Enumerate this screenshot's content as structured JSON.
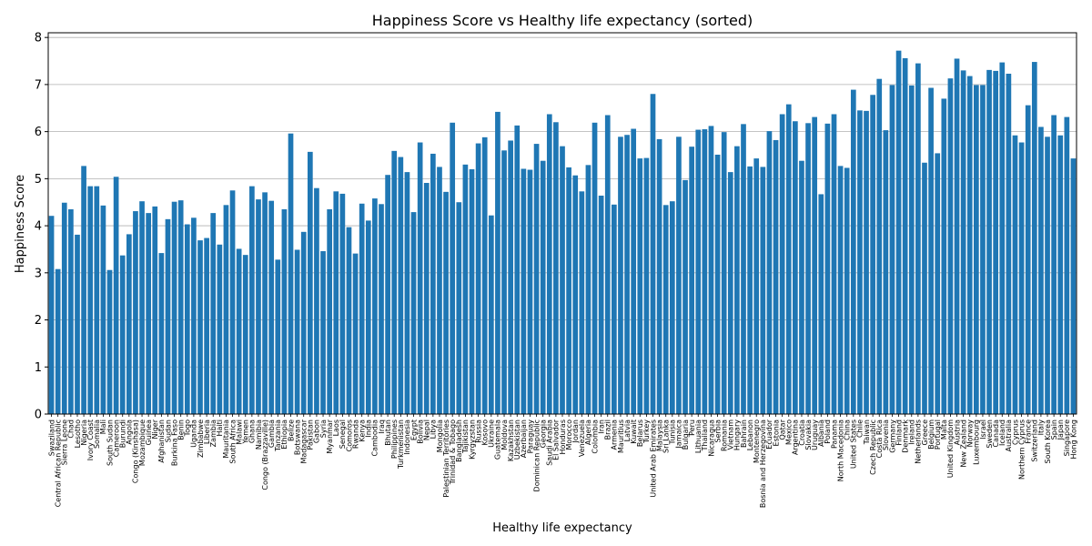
{
  "chart_data": {
    "type": "bar",
    "title": "Happiness Score vs Healthy life expectancy (sorted)",
    "xlabel": "Healthy life expectancy",
    "ylabel": "Happiness Score",
    "ylim": [
      0,
      8.1
    ],
    "yticks": [
      0,
      1,
      2,
      3,
      4,
      5,
      6,
      7,
      8
    ],
    "grid": "y",
    "bar_color": "#1f77b4",
    "categories": [
      "Swaziland",
      "Central African Republic",
      "Sierra Leone",
      "Chad",
      "Lesotho",
      "Nigeria",
      "Ivory Coast",
      "Somalia",
      "Mali",
      "South Sudan",
      "Cameroon",
      "Burundi",
      "Angola",
      "Congo (Kinshasa)",
      "Mozambique",
      "Guinea",
      "Niger",
      "Afghanistan",
      "Sudan",
      "Burkina Faso",
      "Benin",
      "Togo",
      "Uganda",
      "Zimbabwe",
      "Liberia",
      "Zambia",
      "Haiti",
      "Mauritania",
      "South Africa",
      "Malawi",
      "Yemen",
      "Ghana",
      "Namibia",
      "Congo (Brazzaville)",
      "Gambia",
      "Tanzania",
      "Ethiopia",
      "Belize",
      "Botswana",
      "Madagascar",
      "Pakistan",
      "Gabon",
      "Syria",
      "Myanmar",
      "Laos",
      "Senegal",
      "Comoros",
      "Rwanda",
      "Kenya",
      "India",
      "Cambodia",
      "Iraq",
      "Bhutan",
      "Philippines",
      "Turkmenistan",
      "Indonesia",
      "Egypt",
      "Bolivia",
      "Nepal",
      "Libya",
      "Mongolia",
      "Palestinian Territories",
      "Trinidad & Tobago",
      "Bangladesh",
      "Tajikistan",
      "Kyrgyzstan",
      "Russia",
      "Kosovo",
      "Ukraine",
      "Guatemala",
      "Moldova",
      "Kazakhstan",
      "Uzbekistan",
      "Azerbaijan",
      "Paraguay",
      "Dominican Republic",
      "Georgia",
      "Saudi Arabia",
      "El Salvador",
      "Honduras",
      "Morocco",
      "Jordan",
      "Venezuela",
      "Algeria",
      "Colombia",
      "Iran",
      "Brazil",
      "Armenia",
      "Mauritius",
      "Latvia",
      "Kuwait",
      "Belarus",
      "Turkey",
      "United Arab Emirates",
      "Malaysia",
      "Sri Lanka",
      "Tunisia",
      "Jamaica",
      "Bulgaria",
      "Peru",
      "Lithuania",
      "Thailand",
      "Nicaragua",
      "Serbia",
      "Romania",
      "Vietnam",
      "Hungary",
      "Bahrain",
      "Lebanon",
      "Montenegro",
      "Bosnia and Herzegovina",
      "Ecuador",
      "Estonia",
      "Qatar",
      "Mexico",
      "Argentina",
      "Croatia",
      "Slovakia",
      "Uruguay",
      "Albania",
      "Poland",
      "Panama",
      "North Macedonia",
      "China",
      "United States",
      "Chile",
      "Taiwan",
      "Czech Republic",
      "Costa Rica",
      "Slovenia",
      "Germany",
      "Finland",
      "Denmark",
      "Ireland",
      "Netherlands",
      "Greece",
      "Belgium",
      "Portugal",
      "Malta",
      "United Kingdom",
      "Austria",
      "New Zealand",
      "Norway",
      "Luxembourg",
      "Israel",
      "Sweden",
      "Canada",
      "Iceland",
      "Australia",
      "Cyprus",
      "Northern Cyprus",
      "France",
      "Switzerland",
      "Italy",
      "South Korea",
      "Spain",
      "Japan",
      "Singapore",
      "Hong Kong"
    ],
    "values": [
      4.21,
      3.08,
      4.49,
      4.35,
      3.81,
      5.27,
      4.84,
      4.84,
      4.43,
      3.06,
      5.04,
      3.37,
      3.82,
      4.31,
      4.52,
      4.27,
      4.41,
      3.42,
      4.14,
      4.51,
      4.54,
      4.03,
      4.17,
      3.69,
      3.74,
      4.27,
      3.6,
      4.44,
      4.75,
      3.51,
      3.38,
      4.84,
      4.56,
      4.71,
      4.53,
      3.28,
      4.35,
      5.96,
      3.49,
      3.87,
      5.57,
      4.8,
      3.46,
      4.35,
      4.73,
      4.68,
      3.97,
      3.41,
      4.47,
      4.11,
      4.58,
      4.46,
      5.08,
      5.59,
      5.46,
      5.14,
      4.29,
      5.77,
      4.91,
      5.53,
      5.25,
      4.72,
      6.19,
      4.5,
      5.3,
      5.2,
      5.75,
      5.88,
      4.22,
      6.42,
      5.6,
      5.81,
      6.13,
      5.21,
      5.19,
      5.74,
      5.38,
      6.37,
      6.2,
      5.69,
      5.24,
      5.07,
      4.73,
      5.29,
      6.19,
      4.64,
      6.35,
      4.45,
      5.89,
      5.93,
      6.06,
      5.43,
      5.44,
      6.8,
      5.84,
      4.44,
      4.52,
      5.89,
      4.97,
      5.68,
      6.04,
      6.05,
      6.12,
      5.51,
      5.99,
      5.14,
      5.69,
      6.16,
      5.26,
      5.43,
      5.25,
      6.01,
      5.82,
      6.37,
      6.58,
      6.22,
      5.38,
      6.18,
      6.31,
      4.67,
      6.17,
      6.37,
      5.27,
      5.23,
      6.89,
      6.45,
      6.44,
      6.78,
      7.12,
      6.03,
      6.99,
      7.72,
      7.56,
      6.98,
      7.45,
      5.34,
      6.93,
      5.54,
      6.7,
      7.13,
      7.55,
      7.3,
      7.18,
      6.99,
      6.99,
      7.31,
      7.29,
      7.47,
      7.23,
      5.92,
      5.77,
      6.56,
      7.48,
      6.1,
      5.89,
      6.35,
      5.92,
      6.31,
      5.43
    ]
  }
}
